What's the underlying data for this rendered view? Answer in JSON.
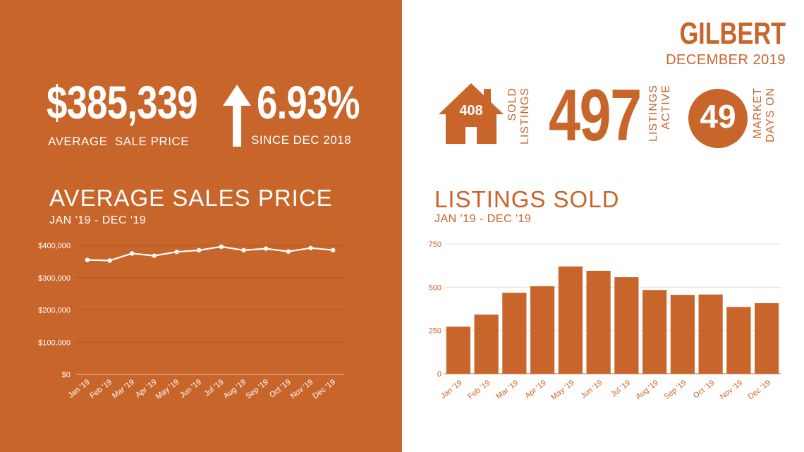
{
  "left": {
    "avg_price": "$385,339",
    "avg_price_label": "AVERAGE  SALE PRICE",
    "pct_change": "6.93%",
    "pct_label": "SINCE DEC 2018",
    "title": "AVERAGE SALES PRICE",
    "subtitle": "JAN '19 - DEC '19"
  },
  "right": {
    "city": "GILBERT",
    "month": "DECEMBER 2019",
    "listings_sold_count": "408",
    "listings_sold_label_1": "LISTINGS",
    "listings_sold_label_2": "SOLD",
    "active_count": "497",
    "active_label_1": "ACTIVE",
    "active_label_2": "LISTINGS",
    "days_count": "49",
    "days_label_1": "DAYS ON",
    "days_label_2": "MARKET",
    "title": "LISTINGS SOLD",
    "subtitle": "JAN '19 - DEC '19"
  },
  "colors": {
    "accent": "#c8652a",
    "white": "#ffffff"
  },
  "icons": {
    "arrow": "arrow-up-icon",
    "house": "house-icon"
  },
  "chart_data": [
    {
      "type": "line",
      "title": "AVERAGE SALES PRICE",
      "subtitle": "JAN '19 - DEC '19",
      "categories": [
        "Jan '19",
        "Feb '19",
        "Mar '19",
        "Apr '19",
        "May '19",
        "Jun '19",
        "Jul '19",
        "Aug '19",
        "Sep '19",
        "Oct '19",
        "Nov '19",
        "Dec '19"
      ],
      "values": [
        355000,
        353000,
        375000,
        368000,
        380000,
        385000,
        396000,
        385000,
        390000,
        381000,
        392000,
        385339
      ],
      "ylim": [
        0,
        400000
      ],
      "yticks": [
        0,
        100000,
        200000,
        300000,
        400000
      ],
      "ytick_labels": [
        "$0",
        "$100,000",
        "$200,000",
        "$300,000",
        "$400,000"
      ],
      "grid": true
    },
    {
      "type": "bar",
      "title": "LISTINGS SOLD",
      "subtitle": "JAN '19 - DEC '19",
      "categories": [
        "Jan '19",
        "Feb '19",
        "Mar '19",
        "Apr '19",
        "May '19",
        "Jun '19",
        "Jul '19",
        "Aug '19",
        "Sep '19",
        "Oct '19",
        "Nov '19",
        "Dec '19"
      ],
      "values": [
        272,
        342,
        468,
        506,
        620,
        595,
        558,
        484,
        456,
        458,
        386,
        408
      ],
      "ylim": [
        0,
        750
      ],
      "yticks": [
        0,
        250,
        500,
        750
      ],
      "ytick_labels": [
        "0",
        "250",
        "500",
        "750"
      ],
      "grid": true
    }
  ]
}
